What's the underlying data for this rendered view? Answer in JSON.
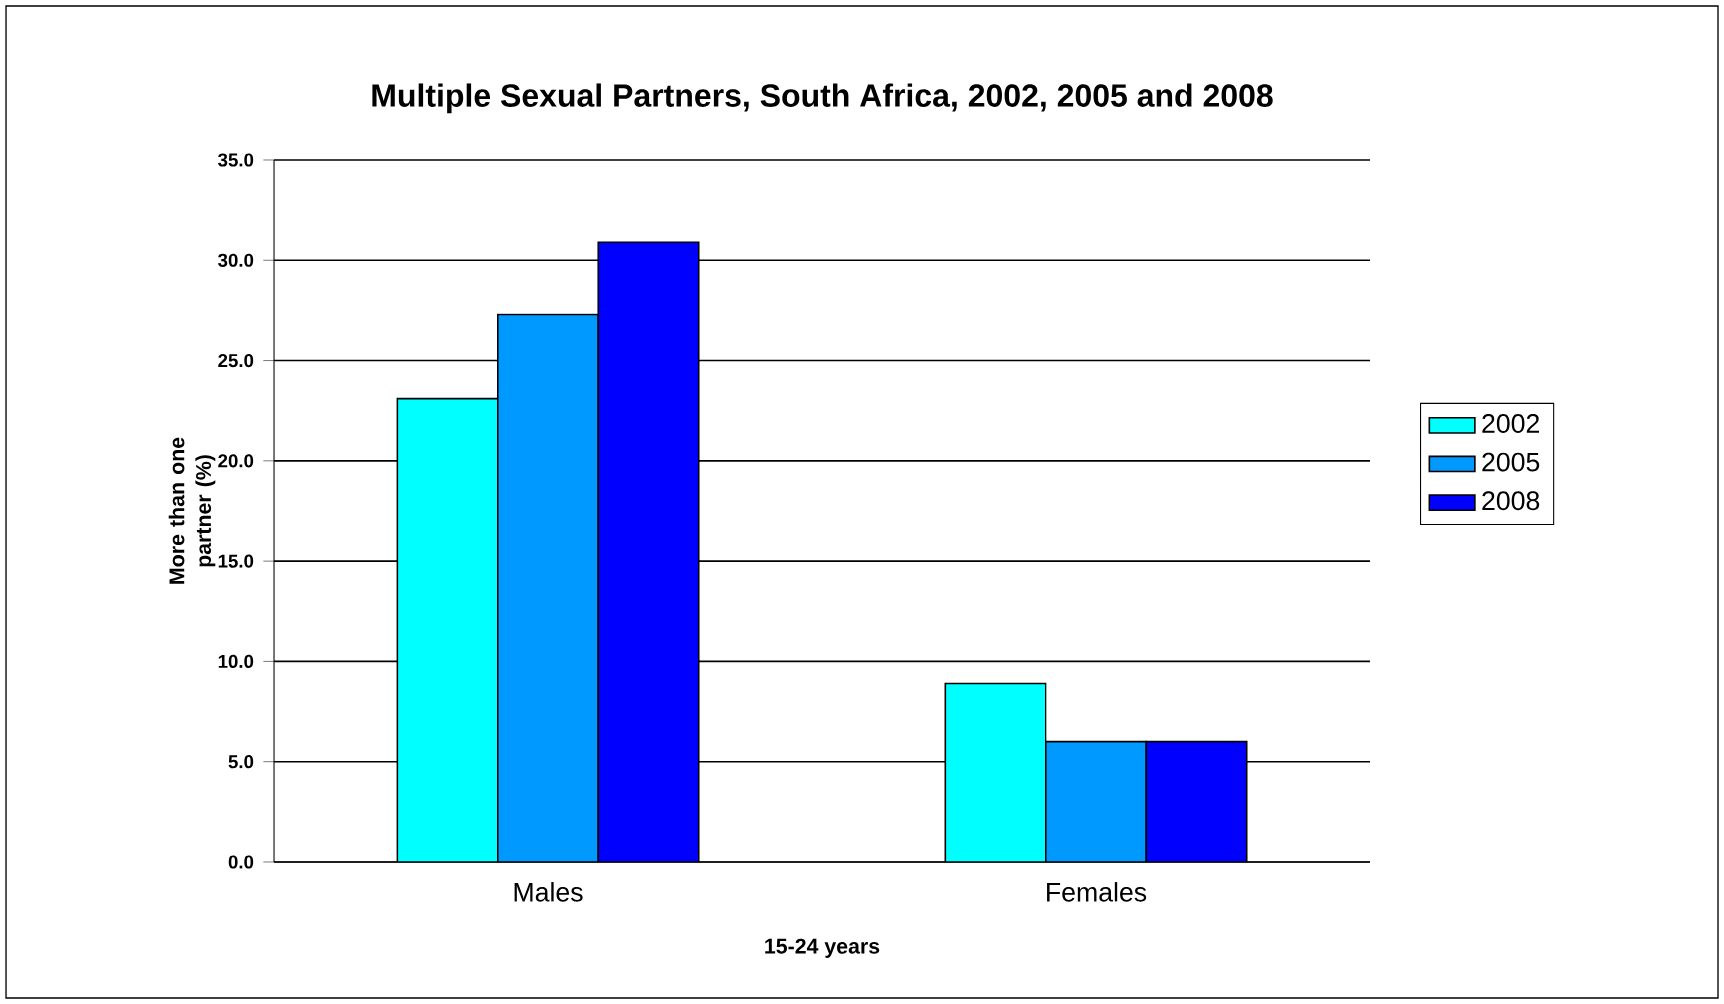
{
  "chart_data": {
    "type": "bar",
    "title": "Multiple Sexual Partners, South Africa, 2002, 2005 and 2008",
    "categories": [
      "Males",
      "Females"
    ],
    "series": [
      {
        "name": "2002",
        "color": "#00ffff",
        "values": [
          23.1,
          8.9
        ]
      },
      {
        "name": "2005",
        "color": "#0099ff",
        "values": [
          27.3,
          6.0
        ]
      },
      {
        "name": "2008",
        "color": "#0000ff",
        "values": [
          30.9,
          6.0
        ]
      }
    ],
    "xlabel": "15-24 years",
    "ylabel": "More than one partner (%)",
    "ylim": [
      0,
      35
    ],
    "yticks": [
      {
        "value": 0,
        "label": "0.0"
      },
      {
        "value": 5,
        "label": "5.0"
      },
      {
        "value": 10,
        "label": "10.0"
      },
      {
        "value": 15,
        "label": "15.0"
      },
      {
        "value": 20,
        "label": "20.0"
      },
      {
        "value": 25,
        "label": "25.0"
      },
      {
        "value": 30,
        "label": "30.0"
      },
      {
        "value": 35,
        "label": "35.0"
      }
    ],
    "grid": "y",
    "legend": "right"
  }
}
